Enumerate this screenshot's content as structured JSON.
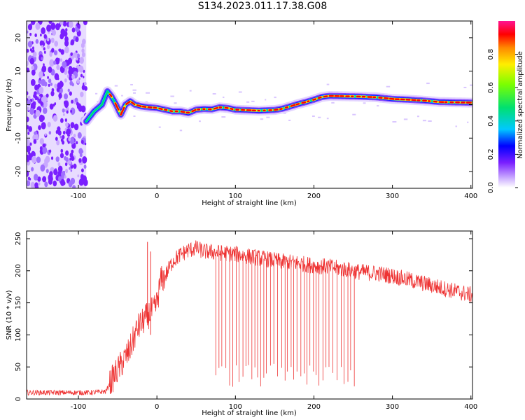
{
  "title": "S134.2023.011.17.38.G08",
  "colors": {
    "snr_line": "#ee3333",
    "spectrogram_noise": "#8a2be2",
    "colormap": [
      "#ffffff",
      "#c9a9ff",
      "#7a1fff",
      "#0000ff",
      "#00c8ff",
      "#00e070",
      "#7cff00",
      "#ffee00",
      "#ff8800",
      "#ff0000",
      "#ff1493"
    ]
  },
  "chart_data": [
    {
      "type": "heatmap",
      "xlabel": "Height of straight line (km)",
      "ylabel": "Frequency (Hz)",
      "xlim": [
        -166,
        402
      ],
      "ylim": [
        -25,
        25
      ],
      "xticks": [
        -100,
        0,
        100,
        200,
        300,
        400
      ],
      "xtick_labels": [
        "-100",
        "0",
        "100",
        "200",
        "300",
        "400"
      ],
      "yticks": [
        -20,
        -10,
        0,
        10,
        20
      ],
      "ytick_labels": [
        "-20",
        "-10",
        "0",
        "10",
        "20"
      ],
      "noise_region_x": [
        -166,
        -90
      ],
      "ridge": {
        "x": [
          -90,
          -80,
          -70,
          -63,
          -58,
          -52,
          -46,
          -40,
          -34,
          -28,
          -20,
          -10,
          0,
          10,
          20,
          30,
          40,
          50,
          60,
          70,
          80,
          90,
          100,
          110,
          120,
          130,
          140,
          150,
          160,
          170,
          180,
          190,
          200,
          210,
          220,
          240,
          260,
          280,
          300,
          320,
          340,
          360,
          380,
          400
        ],
        "freq": [
          -5,
          -2,
          0,
          4,
          2.5,
          0,
          -3,
          0,
          1,
          0,
          -0.5,
          -0.8,
          -1,
          -1.5,
          -2,
          -2,
          -2.5,
          -1.5,
          -1.3,
          -1.4,
          -0.8,
          -1,
          -1.5,
          -1.6,
          -1.7,
          -1.8,
          -1.7,
          -1.6,
          -1.2,
          -0.5,
          0.2,
          0.8,
          1.5,
          2.3,
          2.6,
          2.5,
          2.4,
          2.2,
          1.7,
          1.5,
          1.2,
          0.8,
          0.7,
          0.6
        ]
      },
      "colorbar": {
        "label": "Normalized spectral amplitude",
        "range": [
          0,
          1
        ],
        "ticks": [
          0,
          0.2,
          0.4,
          0.6,
          0.8
        ],
        "tick_labels": [
          "0.0",
          "0.2",
          "0.4",
          "0.6",
          "0.8"
        ]
      }
    },
    {
      "type": "line",
      "xlabel": "Height of straight line (km)",
      "ylabel": "SNR (10 * v/v)",
      "xlim": [
        -166,
        402
      ],
      "ylim": [
        0,
        262
      ],
      "xticks": [
        -100,
        0,
        100,
        200,
        300,
        400
      ],
      "xtick_labels": [
        "-100",
        "0",
        "100",
        "200",
        "300",
        "400"
      ],
      "yticks": [
        0,
        50,
        100,
        150,
        200,
        250
      ],
      "ytick_labels": [
        "0",
        "50",
        "100",
        "150",
        "200",
        "250"
      ],
      "series": [
        {
          "x": [
            -166,
            -140,
            -110,
            -80,
            -65,
            -55,
            -45,
            -35,
            -25,
            -15,
            -8,
            -3,
            0,
            5,
            10,
            20,
            30,
            40,
            50,
            60,
            80,
            100,
            120,
            140,
            160,
            180,
            200,
            220,
            240,
            260,
            280,
            300,
            320,
            340,
            360,
            380,
            402
          ],
          "y": [
            10,
            10,
            10,
            10,
            12,
            35,
            55,
            75,
            110,
            125,
            135,
            140,
            150,
            185,
            190,
            215,
            225,
            232,
            235,
            230,
            228,
            226,
            222,
            218,
            214,
            212,
            208,
            206,
            202,
            198,
            196,
            192,
            186,
            180,
            174,
            168,
            162
          ]
        }
      ],
      "dropouts": {
        "x_range": [
          75,
          255
        ],
        "min_y": [
          18,
          55
        ]
      },
      "spikes": [
        {
          "x": -12,
          "y": 245
        },
        {
          "x": -8,
          "y": 230
        }
      ]
    }
  ]
}
